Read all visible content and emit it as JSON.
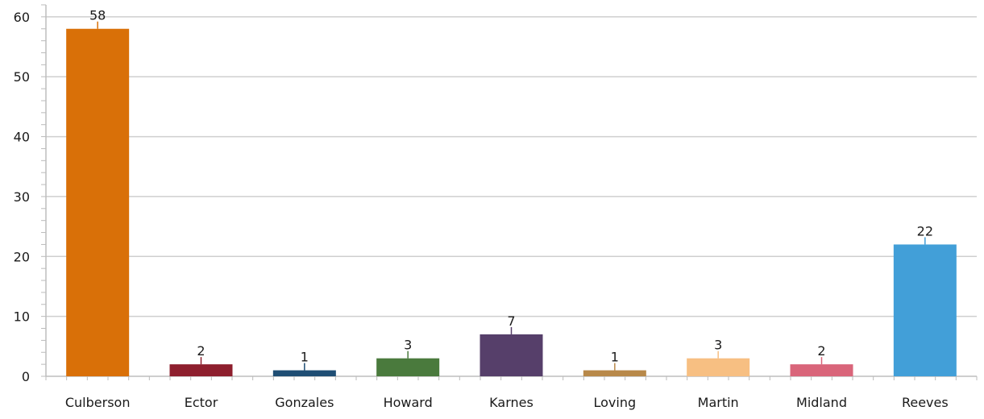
{
  "chart_data": {
    "type": "bar",
    "title": "",
    "xlabel": "",
    "ylabel": "",
    "categories": [
      "Culberson",
      "Ector",
      "Gonzales",
      "Howard",
      "Karnes",
      "Loving",
      "Martin",
      "Midland",
      "Reeves"
    ],
    "values": [
      58,
      2,
      1,
      3,
      7,
      1,
      3,
      2,
      22
    ],
    "colors": [
      "#d97008",
      "#8e1f2e",
      "#1f4e74",
      "#4a7a3d",
      "#563f6a",
      "#b8894a",
      "#f7bf82",
      "#d9657a",
      "#429fd8"
    ],
    "ylim": [
      0,
      62
    ],
    "yticks": [
      0,
      10,
      20,
      30,
      40,
      50,
      60
    ],
    "grid": true,
    "legend": "none",
    "data_labels": true
  }
}
